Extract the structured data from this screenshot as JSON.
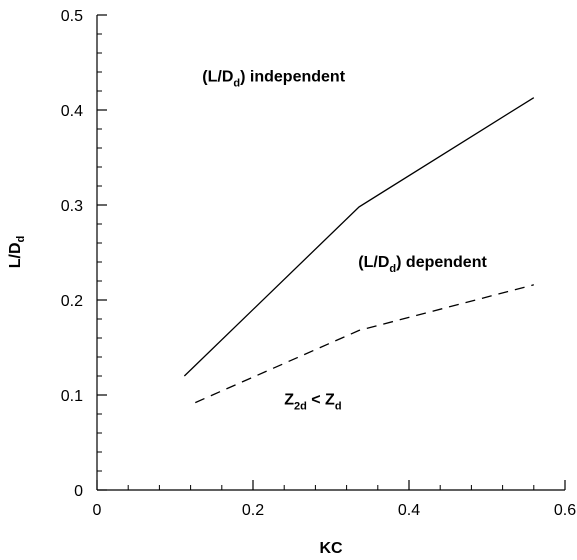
{
  "chart_data": {
    "type": "line",
    "title": "",
    "xlabel": "KC",
    "ylabel": {
      "main": "L/D",
      "sub": "d"
    },
    "xlim": [
      0,
      0.6
    ],
    "ylim": [
      0,
      0.5
    ],
    "x_ticks": [
      0,
      0.2,
      0.4,
      0.6
    ],
    "x_tick_labels": [
      "0",
      "0.2",
      "0.4",
      "0.6"
    ],
    "y_ticks": [
      0,
      0.1,
      0.2,
      0.3,
      0.4,
      0.5
    ],
    "y_tick_labels": [
      "0",
      "0.1",
      "0.2",
      "0.3",
      "0.4",
      "0.5"
    ],
    "x_minor_step": 0.04,
    "y_minor_step": 0.02,
    "grid": false,
    "legend": "none",
    "series": [
      {
        "style": "solid",
        "color": "#000000",
        "x": [
          0.112,
          0.336,
          0.56
        ],
        "y": [
          0.12,
          0.298,
          0.413
        ]
      },
      {
        "style": "dashed",
        "color": "#000000",
        "x": [
          0.126,
          0.336,
          0.56
        ],
        "y": [
          0.092,
          0.168,
          0.216
        ]
      }
    ],
    "annotations": [
      {
        "main": "(L/D",
        "sub": "d",
        "rest": ") independent",
        "x": 0.135,
        "y": 0.43
      },
      {
        "main": "(L/D",
        "sub": "d",
        "rest": ") dependent",
        "x": 0.335,
        "y": 0.235
      },
      {
        "main": "Z",
        "sub": "2d",
        "rest": " < Z",
        "sub2": "d",
        "x": 0.24,
        "y": 0.09
      }
    ]
  }
}
